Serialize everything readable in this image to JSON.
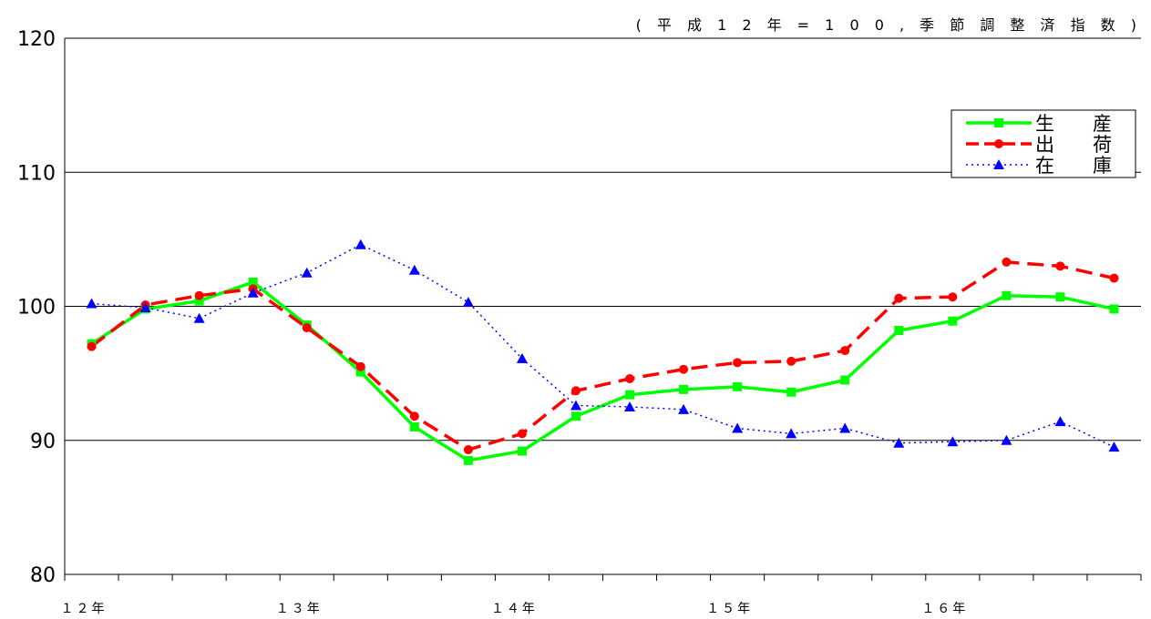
{
  "chart_data": {
    "type": "line",
    "note": "( 平 成 1 2 年 = 1 0 0 , 季 節 調 整 済 指 数 )",
    "ylim": [
      80,
      120
    ],
    "yticks": [
      80,
      90,
      100,
      110,
      120
    ],
    "grid": true,
    "legend_position": "top-right",
    "year_labels": [
      "１２年",
      "１３年",
      "１４年",
      "１５年",
      "１６年"
    ],
    "points_per_year": 4,
    "series": [
      {
        "name": "生　　産",
        "color": "#00ff00",
        "marker": "square",
        "dash": "solid",
        "values": [
          97.2,
          99.8,
          100.4,
          101.8,
          98.6,
          95.1,
          91.0,
          88.5,
          89.2,
          91.8,
          93.4,
          93.8,
          94.0,
          93.6,
          94.5,
          98.2,
          98.9,
          100.8,
          100.7,
          99.8
        ]
      },
      {
        "name": "出　　荷",
        "color": "#ff0000",
        "marker": "circle",
        "dash": "dashed",
        "values": [
          97.0,
          100.1,
          100.8,
          101.3,
          98.4,
          95.5,
          91.8,
          89.3,
          90.5,
          93.7,
          94.6,
          95.3,
          95.8,
          95.9,
          96.7,
          100.6,
          100.7,
          103.3,
          103.0,
          102.1
        ]
      },
      {
        "name": "在　　庫",
        "color": "#0000ff",
        "marker": "triangle",
        "dash": "dotted",
        "values": [
          100.2,
          99.9,
          99.1,
          101.0,
          102.5,
          104.6,
          102.7,
          100.3,
          96.1,
          92.6,
          92.5,
          92.3,
          90.9,
          90.5,
          90.9,
          89.8,
          89.9,
          90.0,
          91.4,
          89.5
        ]
      }
    ]
  }
}
